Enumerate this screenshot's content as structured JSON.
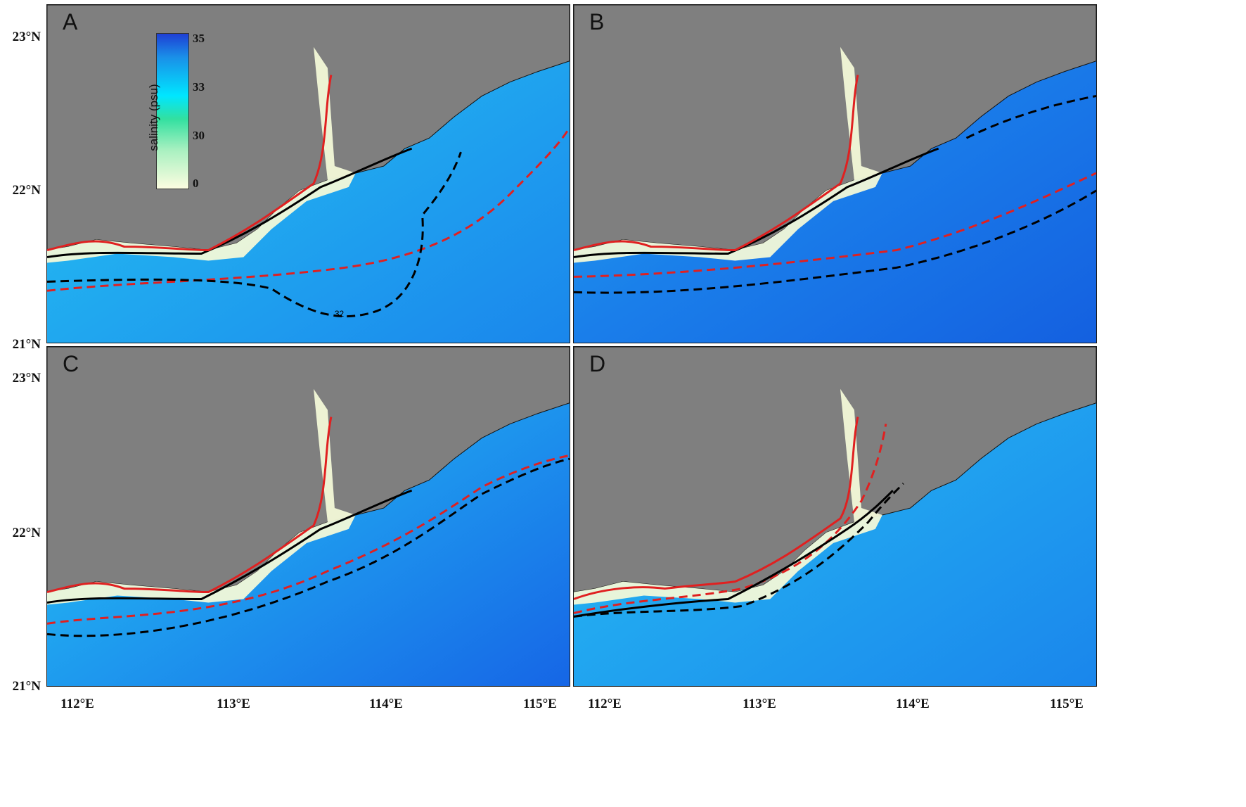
{
  "panels": [
    {
      "label": "A"
    },
    {
      "label": "B"
    },
    {
      "label": "C"
    },
    {
      "label": "D"
    }
  ],
  "latitude_labels": [
    "23°N",
    "22°N",
    "21°N",
    "23°N",
    "22°N",
    "21°N"
  ],
  "longitude_labels": [
    "112°E",
    "113°E",
    "114°E",
    "115°E",
    "112°E",
    "113°E",
    "114°E",
    "115°E"
  ],
  "colorbar": {
    "title": "salinity (psu)",
    "ticks": [
      "35",
      "33",
      "30",
      "0"
    ]
  },
  "contour_label": "32",
  "colors": {
    "land": "#7f7f7f",
    "open_sea": "#1e90ee",
    "deep_sea": "#1466e6",
    "nearshore": "#3fd8f0",
    "fresh": "#f3f9d8",
    "contour_red": "#e02020",
    "contour_black": "#000000"
  }
}
